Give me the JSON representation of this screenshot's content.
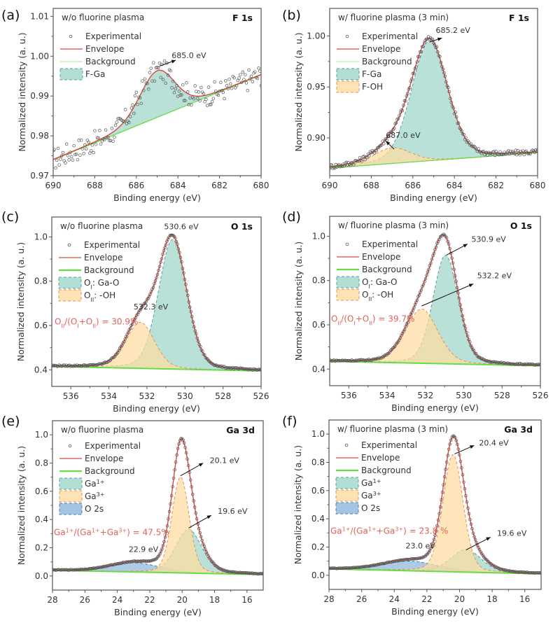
{
  "figure": {
    "description": "XPS spectra of Ga2O3 surface with and without fluorine plasma treatment",
    "colors": {
      "experimental": "#555555",
      "envelope": "#d9473e",
      "background": "#66dd44",
      "component_teal": "#9fd6c8",
      "component_teal_edge": "#5a9fa2",
      "component_orange": "#fddca0",
      "component_orange_edge": "#e8905a",
      "component_blue": "#8db5dc",
      "component_blue_edge": "#4f7fa8",
      "ratio_text": "#e0605a",
      "frame": "#555555"
    }
  },
  "chart_data": [
    {
      "id": "a",
      "panel_label": "(a)",
      "type": "line",
      "title": "F 1s",
      "condition": "w/o fluorine plasma",
      "xlabel": "Binding energy (eV)",
      "ylabel": "Normalized intensity (a. u.)",
      "xlim": [
        690,
        680
      ],
      "ylim": [
        0.97,
        1.012
      ],
      "xticks": [
        690,
        688,
        686,
        684,
        682,
        680
      ],
      "xtick_labels": [
        "690",
        "688",
        "686",
        "684",
        "682",
        "680"
      ],
      "yticks": [
        0.97,
        0.98,
        0.99,
        1.0,
        1.01
      ],
      "ytick_labels": [
        "0.97",
        "0.98",
        "0.99",
        "1.00",
        "1.01"
      ],
      "legend": [
        "Experimental",
        "Envelope",
        "Background",
        "F-Ga"
      ],
      "background": {
        "x": [
          690,
          680
        ],
        "y": [
          0.974,
          0.9953
        ]
      },
      "components": [
        {
          "name": "F-Ga",
          "center": 685.0,
          "height": 0.0117,
          "fwhm": 2.0,
          "color": "teal"
        }
      ],
      "noise": 0.0028,
      "annotations": [
        {
          "text": "685.0 eV",
          "x": 684.3,
          "y": 0.9995,
          "arrow_from": [
            684.9,
            0.9975
          ],
          "arrow_to": [
            684.1,
            0.999
          ]
        }
      ],
      "ratio": null
    },
    {
      "id": "b",
      "panel_label": "(b)",
      "type": "line",
      "title": "F 1s",
      "condition": "w/ fluorine plasma (3 min)",
      "xlabel": "Binding energy (eV)",
      "ylabel": "Normalized intensity (a. u.)",
      "xlim": [
        690,
        680
      ],
      "ylim": [
        0.863,
        1.027
      ],
      "xticks": [
        690,
        688,
        686,
        684,
        682,
        680
      ],
      "xtick_labels": [
        "690",
        "688",
        "686",
        "684",
        "682",
        "680"
      ],
      "yticks": [
        0.9,
        0.95,
        1.0
      ],
      "ytick_labels": [
        "0.90",
        "0.95",
        "1.00"
      ],
      "legend": [
        "Experimental",
        "Envelope",
        "Background",
        "F-Ga",
        "F-OH"
      ],
      "background": {
        "x": [
          690,
          680
        ],
        "y": [
          0.8705,
          0.8855
        ]
      },
      "components": [
        {
          "name": "F-Ga",
          "center": 685.2,
          "height": 0.1175,
          "fwhm": 2.05,
          "color": "teal"
        },
        {
          "name": "F-OH",
          "center": 687.0,
          "height": 0.0155,
          "fwhm": 2.1,
          "color": "orange"
        }
      ],
      "noise": 0.0025,
      "annotations": [
        {
          "text": "685.2 eV",
          "x": 684.9,
          "y": 1.003,
          "arrow_from": [
            685.2,
            0.994
          ],
          "arrow_to": [
            684.6,
            0.998
          ]
        },
        {
          "text": "687.0 eV",
          "x": 687.3,
          "y": 0.9,
          "arrow_from": [
            686.9,
            0.889
          ],
          "arrow_to": [
            687.3,
            0.897
          ]
        }
      ],
      "ratio": null
    },
    {
      "id": "c",
      "panel_label": "(c)",
      "type": "line",
      "title": "O 1s",
      "condition": "w/o fluorine plasma",
      "xlabel": "Binding energy (eV)",
      "ylabel": "Normalized intensity (a. u.)",
      "xlim": [
        537,
        526
      ],
      "ylim": [
        0.325,
        1.09
      ],
      "xticks": [
        536,
        534,
        532,
        530,
        528,
        526
      ],
      "xtick_labels": [
        "536",
        "534",
        "532",
        "530",
        "528",
        "526"
      ],
      "yticks": [
        0.4,
        0.6,
        0.8,
        1.0
      ],
      "ytick_labels": [
        "0.4",
        "0.6",
        "0.8",
        "1.0"
      ],
      "legend": [
        "Experimental",
        "Envelope",
        "Background",
        "O_I: Ga-O",
        "O_II: -OH"
      ],
      "background": {
        "x": [
          537,
          526
        ],
        "y": [
          0.415,
          0.395
        ]
      },
      "components": [
        {
          "name": "O_I: Ga-O",
          "center": 530.65,
          "height": 0.585,
          "fwhm": 1.75,
          "color": "teal"
        },
        {
          "name": "O_II: -OH",
          "center": 532.35,
          "height": 0.208,
          "fwhm": 1.75,
          "color": "orange"
        }
      ],
      "noise": 0.003,
      "annotations": [
        {
          "text": "530.6 eV",
          "x": 531.1,
          "y": 1.035,
          "arrow_from": null,
          "arrow_to": null
        },
        {
          "text": "532.3 eV",
          "x": 532.7,
          "y": 0.672,
          "arrow_from": null,
          "arrow_to": null
        }
      ],
      "ratio": {
        "text": "O_II/(O_I+O_II) = 30.9%",
        "value_percent": 30.9
      }
    },
    {
      "id": "d",
      "panel_label": "(d)",
      "type": "line",
      "title": "O 1s",
      "condition": "w/ fluorine plasma (3 min)",
      "xlabel": "Binding energy (eV)",
      "ylabel": "Normalized intensity (a. u.)",
      "xlim": [
        537,
        526
      ],
      "ylim": [
        0.325,
        1.09
      ],
      "xticks": [
        536,
        534,
        532,
        530,
        528,
        526
      ],
      "xtick_labels": [
        "536",
        "534",
        "532",
        "530",
        "528",
        "526"
      ],
      "yticks": [
        0.4,
        0.6,
        0.8,
        1.0
      ],
      "ytick_labels": [
        "0.4",
        "0.6",
        "0.8",
        "1.0"
      ],
      "legend": [
        "Experimental",
        "Envelope",
        "Background",
        "O_I: Ga-O",
        "O_II: -OH"
      ],
      "background": {
        "x": [
          537,
          526
        ],
        "y": [
          0.435,
          0.415
        ]
      },
      "components": [
        {
          "name": "O_I: Ga-O",
          "center": 530.95,
          "height": 0.49,
          "fwhm": 1.55,
          "color": "teal"
        },
        {
          "name": "O_II: -OH",
          "center": 532.2,
          "height": 0.245,
          "fwhm": 2.0,
          "color": "orange"
        }
      ],
      "noise": 0.003,
      "annotations": [
        {
          "text": "530.9 eV",
          "x": 529.6,
          "y": 0.975,
          "arrow_from": [
            530.9,
            0.915
          ],
          "arrow_to": [
            529.8,
            0.965
          ]
        },
        {
          "text": "532.2 eV",
          "x": 529.3,
          "y": 0.81,
          "arrow_from": [
            532.2,
            0.685
          ],
          "arrow_to": [
            529.5,
            0.785
          ]
        }
      ],
      "ratio": {
        "text": "O_II/(O_I+O_II) = 39.7%",
        "value_percent": 39.7
      }
    },
    {
      "id": "e",
      "panel_label": "(e)",
      "type": "line",
      "title": "Ga 3d",
      "condition": "w/o fluorine plasma",
      "xlabel": "Binding energy (eV)",
      "ylabel": "Normalized intensity (a. u.)",
      "xlim": [
        28,
        15
      ],
      "ylim": [
        -0.1,
        1.1
      ],
      "xticks": [
        28,
        26,
        24,
        22,
        20,
        18,
        16
      ],
      "xtick_labels": [
        "28",
        "26",
        "24",
        "22",
        "20",
        "18",
        "16"
      ],
      "yticks": [
        0.0,
        0.2,
        0.4,
        0.6,
        0.8,
        1.0
      ],
      "ytick_labels": [
        "0.0",
        "0.2",
        "0.4",
        "0.6",
        "0.8",
        "1.0"
      ],
      "legend": [
        "Experimental",
        "Envelope",
        "Background",
        "Ga^1+",
        "Ga^3+",
        "O 2s"
      ],
      "background": {
        "x": [
          28,
          15
        ],
        "y": [
          0.04,
          0.01
        ]
      },
      "components": [
        {
          "name": "O 2s",
          "center": 22.9,
          "height": 0.065,
          "fwhm": 3.6,
          "color": "blue"
        },
        {
          "name": "Ga^1+",
          "center": 19.6,
          "height": 0.31,
          "fwhm": 1.9,
          "color": "teal"
        },
        {
          "name": "Ga^3+",
          "center": 20.1,
          "height": 0.68,
          "fwhm": 1.25,
          "color": "orange"
        }
      ],
      "noise": 0.002,
      "annotations": [
        {
          "text": "20.1 eV",
          "x": 18.3,
          "y": 0.8,
          "arrow_from": [
            20.1,
            0.71
          ],
          "arrow_to": [
            18.7,
            0.8
          ]
        },
        {
          "text": "19.6 eV",
          "x": 17.8,
          "y": 0.44,
          "arrow_from": [
            19.6,
            0.34
          ],
          "arrow_to": [
            18.2,
            0.43
          ]
        },
        {
          "text": "22.9 eV",
          "x": 23.3,
          "y": 0.17,
          "arrow_from": null,
          "arrow_to": null
        }
      ],
      "ratio": {
        "text": "Ga^1+/(Ga^1++Ga^3+) = 47.5%",
        "value_percent": 47.5
      }
    },
    {
      "id": "f",
      "panel_label": "(f)",
      "type": "line",
      "title": "Ga 3d",
      "condition": "w/ fluorine plasma (3 min)",
      "xlabel": "Binding energy (eV)",
      "ylabel": "Normalized intensity (a. u.)",
      "xlim": [
        28,
        15
      ],
      "ylim": [
        -0.1,
        1.1
      ],
      "xticks": [
        28,
        26,
        24,
        22,
        20,
        18,
        16
      ],
      "xtick_labels": [
        "28",
        "26",
        "24",
        "22",
        "20",
        "18",
        "16"
      ],
      "yticks": [
        0.0,
        0.2,
        0.4,
        0.6,
        0.8,
        1.0
      ],
      "ytick_labels": [
        "0.0",
        "0.2",
        "0.4",
        "0.6",
        "0.8",
        "1.0"
      ],
      "legend": [
        "Experimental",
        "Envelope",
        "Background",
        "Ga^1+",
        "Ga^3+",
        "O 2s"
      ],
      "background": {
        "x": [
          28,
          15
        ],
        "y": [
          0.045,
          0.01
        ]
      },
      "components": [
        {
          "name": "O 2s",
          "center": 23.0,
          "height": 0.068,
          "fwhm": 4.0,
          "color": "blue"
        },
        {
          "name": "Ga^1+",
          "center": 19.6,
          "height": 0.16,
          "fwhm": 2.2,
          "color": "teal"
        },
        {
          "name": "Ga^3+",
          "center": 20.4,
          "height": 0.83,
          "fwhm": 1.45,
          "color": "orange"
        }
      ],
      "noise": 0.002,
      "annotations": [
        {
          "text": "20.4 eV",
          "x": 18.8,
          "y": 0.92,
          "arrow_from": [
            20.3,
            0.86
          ],
          "arrow_to": [
            19.1,
            0.92
          ]
        },
        {
          "text": "19.6 eV",
          "x": 17.7,
          "y": 0.28,
          "arrow_from": [
            19.6,
            0.18
          ],
          "arrow_to": [
            18.1,
            0.27
          ]
        },
        {
          "text": "23.0 eV",
          "x": 23.3,
          "y": 0.19,
          "arrow_from": null,
          "arrow_to": null
        }
      ],
      "ratio": {
        "text": "Ga^1+/(Ga^1++Ga^3+) = 23.8 %",
        "value_percent": 23.8
      }
    }
  ]
}
